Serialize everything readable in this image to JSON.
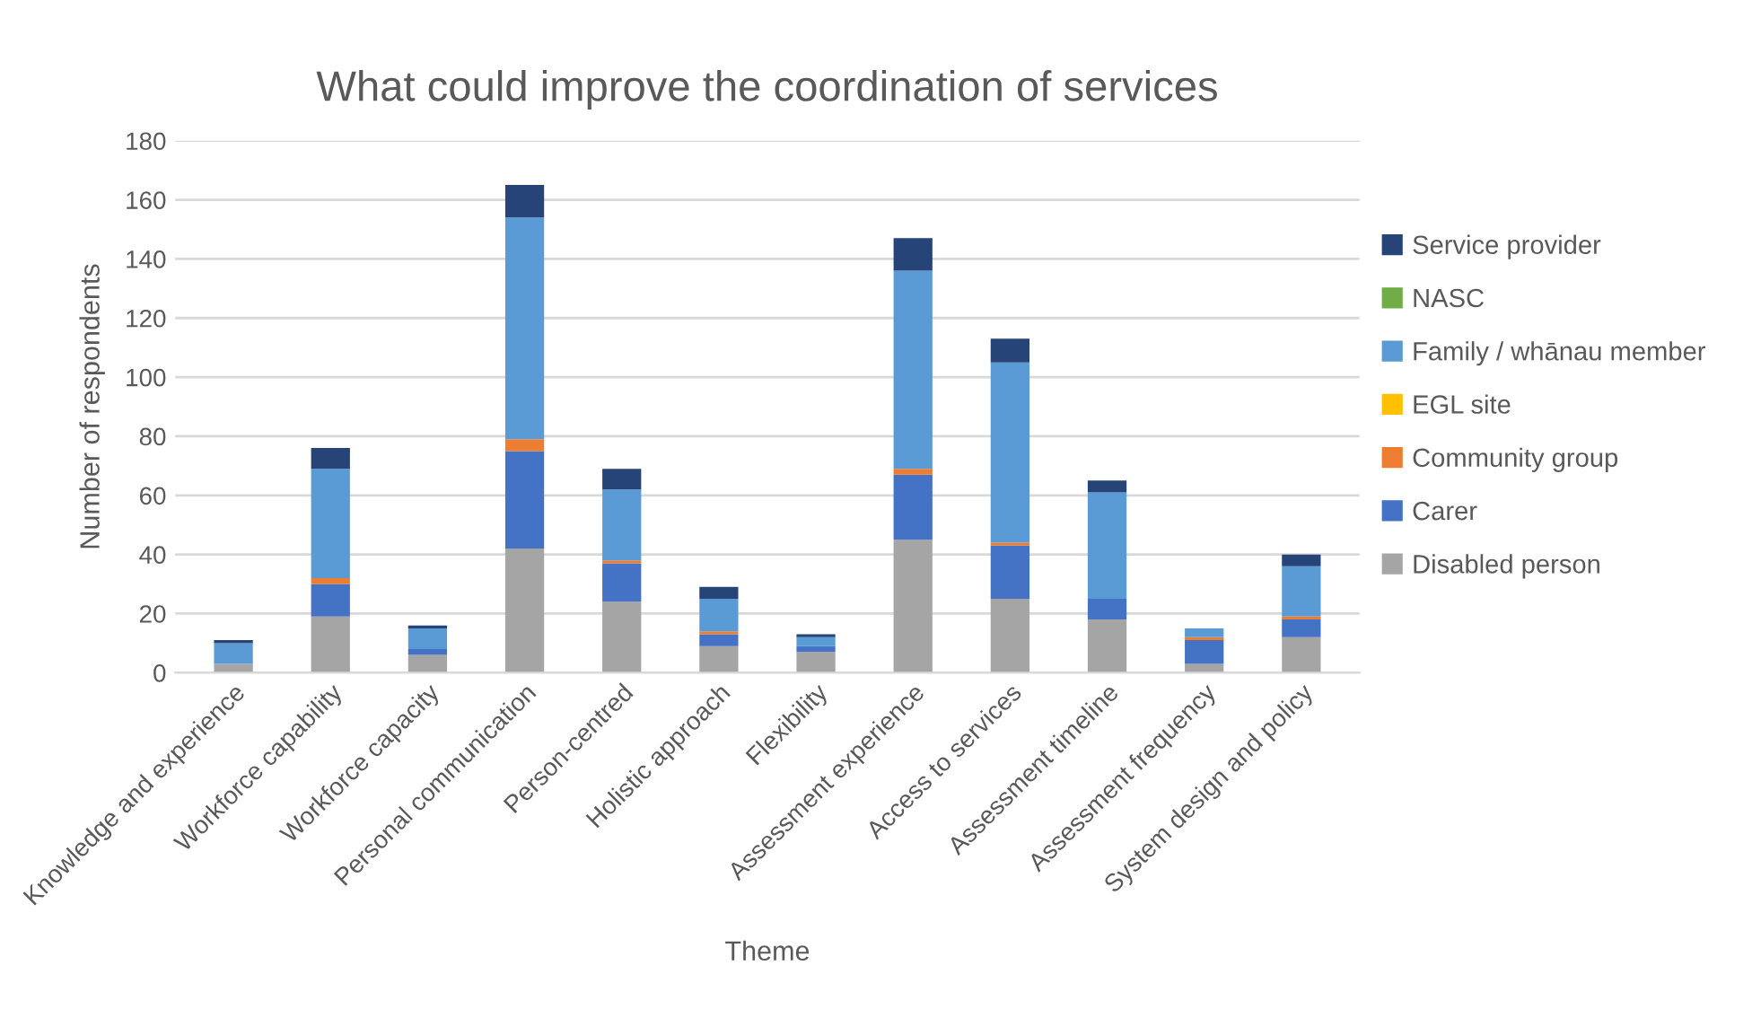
{
  "chart_data": {
    "type": "bar",
    "stacked": true,
    "title": "What could improve the coordination of services",
    "xlabel": "Theme",
    "ylabel": "Number of respondents",
    "categories": [
      "Knowledge and experience",
      "Workforce capability",
      "Workforce capacity",
      "Personal communication",
      "Person-centred",
      "Holistic approach",
      "Flexibility",
      "Assessment experience",
      "Access to services",
      "Assessment timeline",
      "Assessment frequency",
      "System design and policy"
    ],
    "series": [
      {
        "name": "Disabled person",
        "color": "#a5a5a5",
        "values": [
          3,
          19,
          6,
          42,
          24,
          9,
          7,
          45,
          25,
          18,
          3,
          12
        ]
      },
      {
        "name": "Carer",
        "color": "#4472c4",
        "values": [
          0,
          11,
          2,
          33,
          13,
          4,
          2,
          22,
          18,
          7,
          8,
          6
        ]
      },
      {
        "name": "Community group",
        "color": "#ed7d31",
        "values": [
          0,
          2,
          0,
          4,
          1,
          1,
          0,
          2,
          1,
          0,
          1,
          1
        ]
      },
      {
        "name": "EGL site",
        "color": "#ffc000",
        "values": [
          0,
          0,
          0,
          0,
          0,
          0,
          0,
          0,
          0,
          0,
          0,
          0
        ]
      },
      {
        "name": "Family / whānau member",
        "color": "#5b9bd5",
        "values": [
          7,
          37,
          7,
          75,
          24,
          11,
          3,
          67,
          61,
          36,
          3,
          17
        ]
      },
      {
        "name": "NASC",
        "color": "#70ad47",
        "values": [
          0,
          0,
          0,
          0,
          0,
          0,
          0,
          0,
          0,
          0,
          0,
          0
        ]
      },
      {
        "name": "Service provider",
        "color": "#264478",
        "values": [
          1,
          7,
          1,
          11,
          7,
          4,
          1,
          11,
          8,
          4,
          0,
          4
        ]
      }
    ],
    "ylim": [
      0,
      180
    ],
    "yticks": [
      0,
      20,
      40,
      60,
      80,
      100,
      120,
      140,
      160,
      180
    ],
    "grid": "y",
    "legend": "right"
  }
}
